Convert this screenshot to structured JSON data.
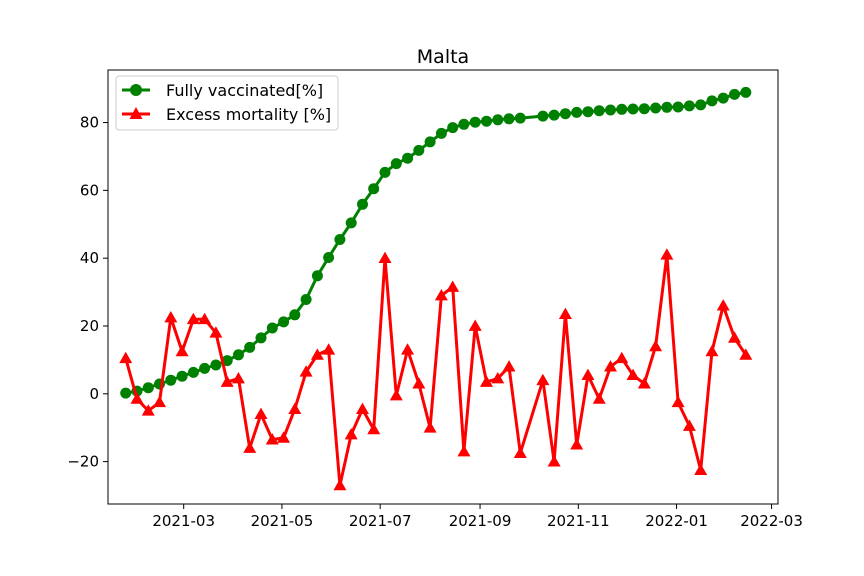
{
  "chart_data": {
    "type": "line",
    "title": "Malta",
    "xlabel": "",
    "ylabel": "",
    "grid": false,
    "legend_position": "top-left",
    "x_ticks": [
      "2021-03",
      "2021-05",
      "2021-07",
      "2021-09",
      "2021-11",
      "2022-01",
      "2022-03"
    ],
    "y_ticks": [
      -20,
      0,
      20,
      40,
      60,
      80
    ],
    "ylim": [
      -32.5,
      95.5
    ],
    "xlim": [
      "2021-01-13",
      "2022-03-05"
    ],
    "series": [
      {
        "name": "Fully vaccinated[%]",
        "color": "#008000",
        "marker": "circle",
        "x": [
          "2021-01-24",
          "2021-01-31",
          "2021-02-07",
          "2021-02-14",
          "2021-02-21",
          "2021-02-28",
          "2021-03-07",
          "2021-03-14",
          "2021-03-21",
          "2021-03-28",
          "2021-04-04",
          "2021-04-11",
          "2021-04-18",
          "2021-04-25",
          "2021-05-02",
          "2021-05-09",
          "2021-05-16",
          "2021-05-23",
          "2021-05-30",
          "2021-06-06",
          "2021-06-13",
          "2021-06-20",
          "2021-06-27",
          "2021-07-04",
          "2021-07-11",
          "2021-07-18",
          "2021-07-25",
          "2021-08-01",
          "2021-08-08",
          "2021-08-15",
          "2021-08-22",
          "2021-08-29",
          "2021-09-05",
          "2021-09-12",
          "2021-09-19",
          "2021-09-26",
          "2021-10-10",
          "2021-10-17",
          "2021-10-24",
          "2021-10-31",
          "2021-11-07",
          "2021-11-14",
          "2021-11-21",
          "2021-11-28",
          "2021-12-05",
          "2021-12-12",
          "2021-12-19",
          "2021-12-26",
          "2022-01-02",
          "2022-01-09",
          "2022-01-16",
          "2022-01-23",
          "2022-01-30",
          "2022-02-06",
          "2022-02-13"
        ],
        "values": [
          0.2,
          0.8,
          1.8,
          2.9,
          4.0,
          5.2,
          6.3,
          7.5,
          8.5,
          9.8,
          11.5,
          13.7,
          16.5,
          19.4,
          21.2,
          23.3,
          27.8,
          34.8,
          40.2,
          45.5,
          50.4,
          55.9,
          60.5,
          65.3,
          67.9,
          69.5,
          71.8,
          74.3,
          76.8,
          78.5,
          79.5,
          80.1,
          80.4,
          80.8,
          81.1,
          81.3,
          81.9,
          82.2,
          82.6,
          83.0,
          83.2,
          83.5,
          83.7,
          83.9,
          84.0,
          84.1,
          84.3,
          84.5,
          84.6,
          84.9,
          85.2,
          86.4,
          87.2,
          88.3,
          88.9
        ]
      },
      {
        "name": "Excess mortality [%]",
        "color": "#ff0000",
        "marker": "triangle",
        "x": [
          "2021-01-24",
          "2021-01-31",
          "2021-02-07",
          "2021-02-14",
          "2021-02-21",
          "2021-02-28",
          "2021-03-07",
          "2021-03-14",
          "2021-03-21",
          "2021-03-28",
          "2021-04-04",
          "2021-04-11",
          "2021-04-18",
          "2021-04-25",
          "2021-05-02",
          "2021-05-09",
          "2021-05-16",
          "2021-05-23",
          "2021-05-30",
          "2021-06-06",
          "2021-06-13",
          "2021-06-20",
          "2021-06-27",
          "2021-07-04",
          "2021-07-11",
          "2021-07-18",
          "2021-07-25",
          "2021-08-01",
          "2021-08-08",
          "2021-08-15",
          "2021-08-22",
          "2021-08-29",
          "2021-09-05",
          "2021-09-12",
          "2021-09-19",
          "2021-09-26",
          "2021-10-10",
          "2021-10-17",
          "2021-10-24",
          "2021-10-31",
          "2021-11-07",
          "2021-11-14",
          "2021-11-21",
          "2021-11-28",
          "2021-12-05",
          "2021-12-12",
          "2021-12-19",
          "2021-12-26",
          "2022-01-02",
          "2022-01-09",
          "2022-01-16",
          "2022-01-23",
          "2022-01-30",
          "2022-02-06",
          "2022-02-13"
        ],
        "values": [
          10.5,
          -1.5,
          -5.0,
          -2.5,
          22.5,
          12.5,
          22.0,
          22.0,
          18.0,
          3.5,
          4.5,
          -16.0,
          -6.0,
          -13.5,
          -13.0,
          -4.5,
          6.5,
          11.5,
          13.0,
          -27.0,
          -12.0,
          -4.5,
          -10.5,
          40.0,
          -0.5,
          13.0,
          3.0,
          -10.0,
          29.0,
          31.5,
          -17.0,
          20.0,
          3.5,
          4.5,
          8.0,
          -17.5,
          4.0,
          -20.0,
          23.5,
          -15.0,
          5.5,
          -1.5,
          8.0,
          10.5,
          5.5,
          3.0,
          14.0,
          41.0,
          -2.5,
          -9.5,
          -22.5,
          12.5,
          26.0,
          16.5,
          11.5
        ]
      }
    ]
  }
}
